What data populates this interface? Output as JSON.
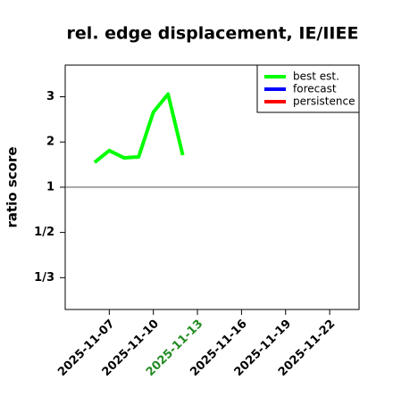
{
  "chart_data": {
    "type": "line",
    "title": "rel. edge displacement, IE/IIEE",
    "y_label": "ratio score",
    "y_scale": "ratio",
    "x": [
      "2025-11-06",
      "2025-11-07",
      "2025-11-08",
      "2025-11-09",
      "2025-11-10",
      "2025-11-11",
      "2025-11-12"
    ],
    "series": [
      {
        "name": "best est.",
        "color": "#00ff00",
        "values": [
          1.55,
          1.81,
          1.65,
          1.67,
          2.66,
          3.06,
          1.71
        ]
      },
      {
        "name": "forecast",
        "color": "#0000ff",
        "values": [
          null,
          null,
          null,
          null,
          null,
          null,
          null
        ]
      },
      {
        "name": "persistence",
        "color": "#ff0000",
        "values": [
          null,
          null,
          null,
          null,
          null,
          null,
          null
        ]
      }
    ],
    "xlim": [
      "2025-11-04",
      "2025-11-24"
    ],
    "xticks": [
      "2025-11-07",
      "2025-11-10",
      "2025-11-13",
      "2025-11-16",
      "2025-11-19",
      "2025-11-22"
    ],
    "highlight_xtick": "2025-11-13",
    "highlight_color": "#228b22",
    "ylim": [
      0.27,
      3.7
    ],
    "yticks": [
      {
        "value": 0.3333,
        "label": "1/3"
      },
      {
        "value": 0.5,
        "label": "1/2"
      },
      1,
      2,
      3
    ],
    "hline": 1,
    "legend": "top-right"
  }
}
